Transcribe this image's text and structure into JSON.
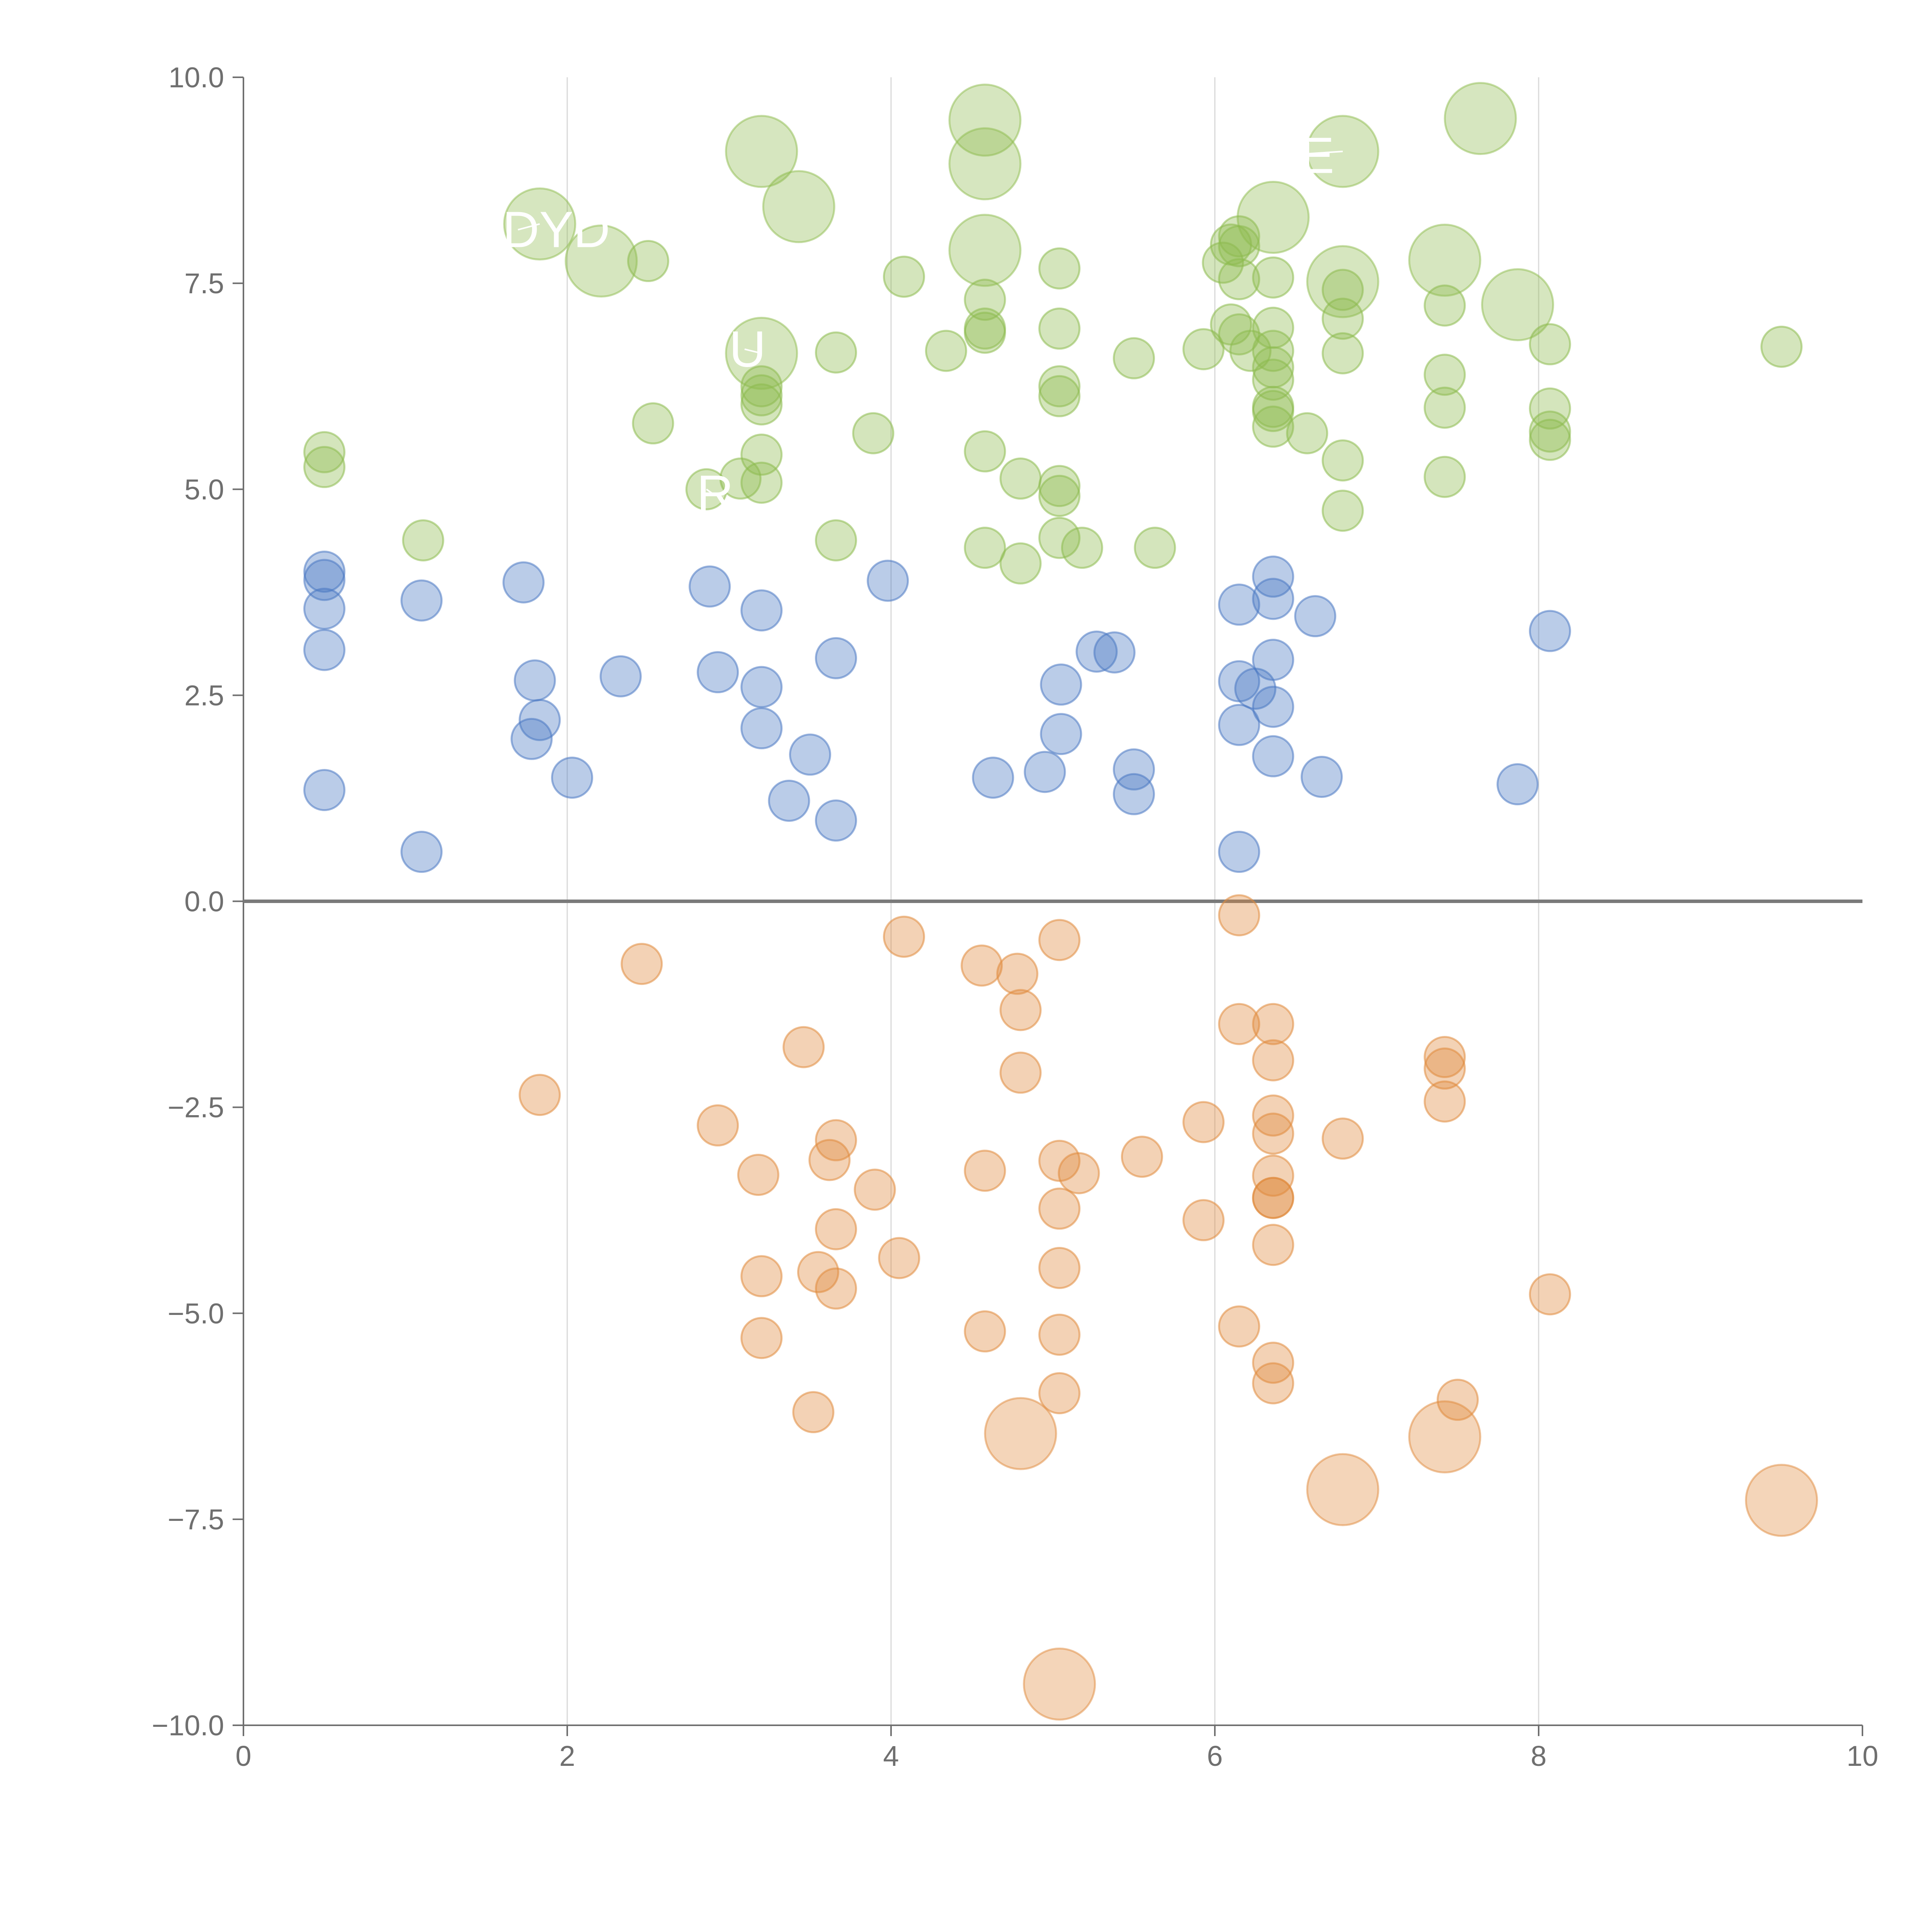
{
  "chart_data": {
    "type": "scatter",
    "title": "",
    "xlabel": "",
    "ylabel": "",
    "xlim": [
      0,
      10
    ],
    "ylim": [
      -10,
      10
    ],
    "x_ticks": [
      0,
      2,
      4,
      6,
      8,
      10
    ],
    "x_tick_labels": [
      "0",
      "2",
      "4",
      "6",
      "8",
      "10"
    ],
    "y_ticks": [
      10,
      7.5,
      5,
      2.5,
      0,
      -2.5,
      -5,
      -7.5,
      -10
    ],
    "y_tick_labels": [
      "10.0",
      "7.5",
      "5.0",
      "2.5",
      "0.0",
      "−2.5",
      "−5.0",
      "−7.5",
      "−10.0"
    ],
    "grid": "vertical",
    "zero_line": true,
    "legend": "none",
    "colors": {
      "blue": "#4a78c2",
      "green": "#8dbb4e",
      "orange": "#e08a3c",
      "axis": "#6f6f6f",
      "grid": "#d8d8d8"
    },
    "series": [
      {
        "color": "blue",
        "points": [
          [
            0.5,
            4.0
          ],
          [
            0.5,
            3.9
          ],
          [
            0.5,
            3.55
          ],
          [
            0.5,
            3.05
          ],
          [
            0.5,
            1.35
          ],
          [
            1.1,
            3.65
          ],
          [
            1.1,
            0.6
          ],
          [
            1.73,
            3.87
          ],
          [
            1.8,
            2.68
          ],
          [
            1.83,
            2.2
          ],
          [
            1.78,
            1.97
          ],
          [
            2.03,
            1.5
          ],
          [
            2.33,
            2.73
          ],
          [
            2.88,
            3.82
          ],
          [
            2.93,
            2.78
          ],
          [
            3.2,
            3.53
          ],
          [
            3.2,
            2.6
          ],
          [
            3.2,
            2.1
          ],
          [
            3.37,
            1.22
          ],
          [
            3.5,
            1.78
          ],
          [
            3.66,
            2.95
          ],
          [
            3.66,
            0.98
          ],
          [
            3.98,
            3.89
          ],
          [
            4.63,
            1.5
          ],
          [
            4.95,
            1.57
          ],
          [
            5.05,
            2.63
          ],
          [
            5.05,
            2.03
          ],
          [
            5.27,
            3.03
          ],
          [
            5.38,
            3.02
          ],
          [
            5.5,
            1.6
          ],
          [
            5.5,
            1.3
          ],
          [
            6.15,
            3.6
          ],
          [
            6.15,
            2.67
          ],
          [
            6.15,
            2.14
          ],
          [
            6.15,
            0.6
          ],
          [
            6.25,
            2.58
          ],
          [
            6.36,
            3.94
          ],
          [
            6.36,
            3.67
          ],
          [
            6.36,
            2.93
          ],
          [
            6.36,
            2.36
          ],
          [
            6.36,
            1.76
          ],
          [
            6.62,
            3.46
          ],
          [
            6.66,
            1.51
          ],
          [
            7.87,
            1.42
          ],
          [
            8.07,
            3.28
          ]
        ]
      },
      {
        "color": "green",
        "points": [
          [
            0.5,
            5.45
          ],
          [
            0.5,
            5.27
          ],
          [
            1.11,
            4.38
          ],
          [
            2.5,
            7.77
          ],
          [
            2.53,
            5.8
          ],
          [
            2.86,
            5.0
          ],
          [
            3.07,
            5.13
          ],
          [
            3.2,
            6.25
          ],
          [
            3.2,
            6.14
          ],
          [
            3.2,
            6.03
          ],
          [
            3.2,
            5.42
          ],
          [
            3.2,
            5.08
          ],
          [
            3.66,
            6.66
          ],
          [
            3.66,
            4.38
          ],
          [
            3.89,
            5.68
          ],
          [
            4.08,
            7.58
          ],
          [
            4.34,
            6.68
          ],
          [
            4.58,
            7.3
          ],
          [
            4.58,
            6.95
          ],
          [
            4.58,
            6.9
          ],
          [
            4.58,
            5.46
          ],
          [
            4.58,
            4.29
          ],
          [
            4.8,
            5.13
          ],
          [
            4.8,
            4.1
          ],
          [
            5.04,
            7.68
          ],
          [
            5.04,
            6.95
          ],
          [
            5.04,
            6.25
          ],
          [
            5.04,
            6.13
          ],
          [
            5.04,
            5.04
          ],
          [
            5.04,
            4.92
          ],
          [
            5.04,
            4.41
          ],
          [
            5.18,
            4.29
          ],
          [
            5.5,
            6.59
          ],
          [
            5.63,
            4.29
          ],
          [
            5.93,
            6.7
          ],
          [
            6.05,
            7.75
          ],
          [
            6.1,
            7.97
          ],
          [
            6.1,
            7.0
          ],
          [
            6.15,
            8.07
          ],
          [
            6.15,
            7.95
          ],
          [
            6.15,
            7.55
          ],
          [
            6.15,
            6.88
          ],
          [
            6.22,
            6.68
          ],
          [
            6.36,
            7.57
          ],
          [
            6.36,
            6.96
          ],
          [
            6.36,
            6.68
          ],
          [
            6.36,
            6.48
          ],
          [
            6.36,
            6.33
          ],
          [
            6.36,
            6.0
          ],
          [
            6.36,
            5.95
          ],
          [
            6.36,
            5.76
          ],
          [
            6.57,
            5.68
          ],
          [
            6.79,
            7.42
          ],
          [
            6.79,
            7.07
          ],
          [
            6.79,
            6.65
          ],
          [
            6.79,
            5.35
          ],
          [
            6.79,
            4.74
          ],
          [
            7.42,
            7.23
          ],
          [
            7.42,
            6.39
          ],
          [
            7.42,
            5.99
          ],
          [
            7.42,
            5.15
          ],
          [
            8.07,
            6.76
          ],
          [
            8.07,
            5.98
          ],
          [
            8.07,
            5.7
          ],
          [
            8.07,
            5.6
          ],
          [
            9.5,
            6.73
          ]
        ]
      },
      {
        "color": "orange",
        "points": [
          [
            1.83,
            -2.35
          ],
          [
            2.46,
            -0.76
          ],
          [
            2.93,
            -2.72
          ],
          [
            3.18,
            -3.32
          ],
          [
            3.2,
            -4.55
          ],
          [
            3.2,
            -5.3
          ],
          [
            3.46,
            -1.77
          ],
          [
            3.52,
            -6.2
          ],
          [
            3.55,
            -4.5
          ],
          [
            3.62,
            -3.14
          ],
          [
            3.66,
            -2.9
          ],
          [
            3.66,
            -3.98
          ],
          [
            3.66,
            -4.7
          ],
          [
            3.9,
            -3.5
          ],
          [
            4.05,
            -4.33
          ],
          [
            4.08,
            -0.43
          ],
          [
            4.56,
            -0.78
          ],
          [
            4.58,
            -3.27
          ],
          [
            4.58,
            -5.22
          ],
          [
            4.78,
            -0.88
          ],
          [
            4.8,
            -1.32
          ],
          [
            4.8,
            -2.08
          ],
          [
            5.04,
            -0.47
          ],
          [
            5.04,
            -3.15
          ],
          [
            5.04,
            -3.73
          ],
          [
            5.04,
            -4.45
          ],
          [
            5.04,
            -5.26
          ],
          [
            5.04,
            -5.97
          ],
          [
            5.16,
            -3.3
          ],
          [
            5.55,
            -3.1
          ],
          [
            5.93,
            -2.68
          ],
          [
            5.93,
            -3.87
          ],
          [
            6.15,
            -0.17
          ],
          [
            6.15,
            -1.49
          ],
          [
            6.15,
            -5.16
          ],
          [
            6.36,
            -1.49
          ],
          [
            6.36,
            -1.93
          ],
          [
            6.36,
            -2.6
          ],
          [
            6.36,
            -2.82
          ],
          [
            6.36,
            -3.33
          ],
          [
            6.36,
            -3.6
          ],
          [
            6.36,
            -3.6
          ],
          [
            6.36,
            -4.17
          ],
          [
            6.36,
            -5.6
          ],
          [
            6.36,
            -5.85
          ],
          [
            6.79,
            -2.88
          ],
          [
            7.42,
            -1.89
          ],
          [
            7.42,
            -2.03
          ],
          [
            7.42,
            -2.43
          ],
          [
            7.5,
            -6.05
          ],
          [
            8.07,
            -4.77
          ]
        ]
      }
    ],
    "bubbles": [
      {
        "color": "green",
        "x": 1.83,
        "y": 8.22
      },
      {
        "color": "green",
        "x": 2.21,
        "y": 7.77
      },
      {
        "color": "green",
        "x": 3.2,
        "y": 9.1
      },
      {
        "color": "green",
        "x": 3.43,
        "y": 8.43
      },
      {
        "color": "green",
        "x": 3.2,
        "y": 6.65
      },
      {
        "color": "green",
        "x": 4.58,
        "y": 9.48
      },
      {
        "color": "green",
        "x": 4.58,
        "y": 8.95
      },
      {
        "color": "green",
        "x": 4.58,
        "y": 7.9
      },
      {
        "color": "green",
        "x": 6.36,
        "y": 8.3
      },
      {
        "color": "green",
        "x": 6.79,
        "y": 9.1
      },
      {
        "color": "green",
        "x": 6.79,
        "y": 7.52
      },
      {
        "color": "green",
        "x": 7.42,
        "y": 7.78
      },
      {
        "color": "green",
        "x": 7.64,
        "y": 9.5
      },
      {
        "color": "green",
        "x": 7.87,
        "y": 7.24
      },
      {
        "color": "orange",
        "x": 4.8,
        "y": -6.46
      },
      {
        "color": "orange",
        "x": 5.04,
        "y": -9.5
      },
      {
        "color": "orange",
        "x": 6.79,
        "y": -7.14
      },
      {
        "color": "orange",
        "x": 7.42,
        "y": -6.5
      },
      {
        "color": "orange",
        "x": 9.5,
        "y": -7.27
      }
    ],
    "annotations": [
      {
        "text": "DYD",
        "x": 1.6,
        "y": 8.15,
        "ax": 1.83,
        "ay": 8.22
      },
      {
        "text": "NE",
        "x": 6.3,
        "y": 9.05,
        "ax": 6.79,
        "ay": 9.1
      },
      {
        "text": "U",
        "x": 3.0,
        "y": 6.7,
        "ax": 3.2,
        "ay": 6.65
      },
      {
        "text": "R",
        "x": 2.8,
        "y": 4.95,
        "ax": 2.86,
        "ay": 5.0
      }
    ]
  }
}
